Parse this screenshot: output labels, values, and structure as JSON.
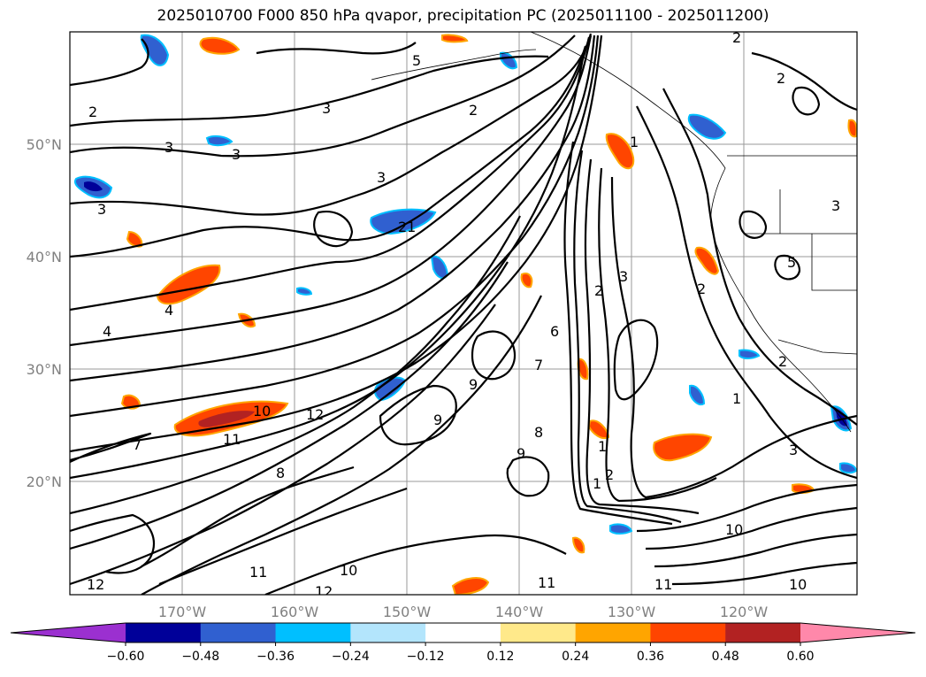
{
  "title": "2025010700 F000 850 hPa qvapor, precipitation PC (2025011100 - 2025011200)",
  "map": {
    "lat_ticks": [
      "50°N",
      "40°N",
      "30°N",
      "20°N"
    ],
    "lon_ticks": [
      "170°W",
      "160°W",
      "150°W",
      "140°W",
      "130°W",
      "120°W"
    ],
    "grid": true
  },
  "contour_labels": [
    {
      "text": "5"
    },
    {
      "text": "2"
    },
    {
      "text": "2"
    },
    {
      "text": "3"
    },
    {
      "text": "3"
    },
    {
      "text": "3"
    },
    {
      "text": "3"
    },
    {
      "text": "21"
    },
    {
      "text": "4"
    },
    {
      "text": "4"
    },
    {
      "text": "10"
    },
    {
      "text": "11"
    },
    {
      "text": "12"
    },
    {
      "text": "7"
    },
    {
      "text": "9"
    },
    {
      "text": "9"
    },
    {
      "text": "8"
    },
    {
      "text": "9"
    },
    {
      "text": "7"
    },
    {
      "text": "6"
    },
    {
      "text": "3"
    },
    {
      "text": "2"
    },
    {
      "text": "1"
    },
    {
      "text": "1"
    },
    {
      "text": "1"
    },
    {
      "text": "2"
    },
    {
      "text": "1"
    },
    {
      "text": "3"
    },
    {
      "text": "11"
    },
    {
      "text": "12"
    },
    {
      "text": "11"
    },
    {
      "text": "10"
    },
    {
      "text": "12"
    },
    {
      "text": "11"
    },
    {
      "text": "10"
    },
    {
      "text": "10"
    },
    {
      "text": "3"
    },
    {
      "text": "5"
    },
    {
      "text": "2"
    },
    {
      "text": "2"
    },
    {
      "text": "3"
    },
    {
      "text": "8"
    },
    {
      "text": "2"
    },
    {
      "text": "2"
    }
  ],
  "colorbar": {
    "colors": [
      "#9b30d0",
      "#000099",
      "#3060d0",
      "#00bfff",
      "#b3e5fc",
      "#ffffff",
      "#ffe98a",
      "#ffa500",
      "#ff4500",
      "#b22222",
      "#ff88aa"
    ],
    "labels": [
      "−0.60",
      "−0.48",
      "−0.36",
      "−0.24",
      "−0.12",
      "0.12",
      "0.24",
      "0.36",
      "0.48",
      "0.60"
    ]
  },
  "colors": {
    "contour": "#000000",
    "grid": "#999999",
    "tick_text": "#808080"
  }
}
